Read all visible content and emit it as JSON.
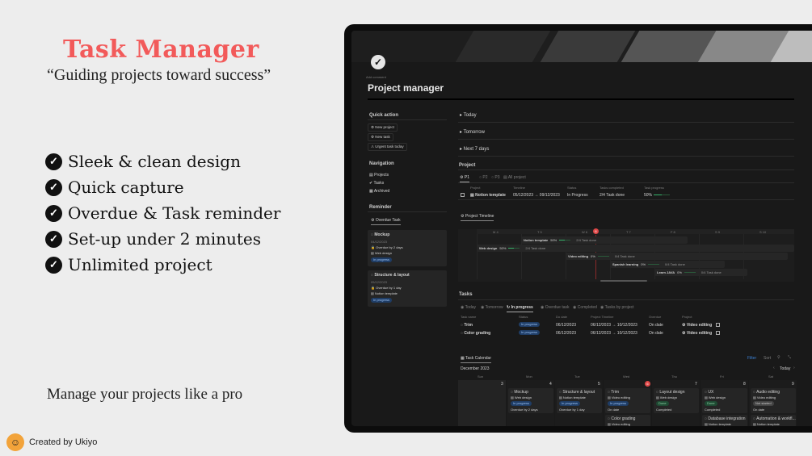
{
  "promo": {
    "title": "Task Manager",
    "tagline": "“Guiding projects toward success”",
    "features": [
      "Sleek & clean design",
      "Quick capture",
      "Overdue & Task reminder",
      "Set-up under 2 minutes",
      "Unlimited project"
    ],
    "bottom_line": "Manage your projects like a pro",
    "creator": "Created by Ukiyo",
    "title_color": "#f25a5a"
  },
  "app": {
    "add_comment": "Add comment",
    "page_title": "Project manager",
    "quick_action": {
      "heading": "Quick action",
      "buttons": [
        "New project",
        "New task",
        "Urgent task today"
      ]
    },
    "navigation": {
      "heading": "Navigation",
      "items": [
        "Projects",
        "Tasks",
        "Archived"
      ]
    },
    "reminder": {
      "heading": "Reminder",
      "tab": "Overdue Task",
      "cards": [
        {
          "name": "Mockup",
          "date": "04/12/2023",
          "overdue": "Overdue by 2 days",
          "project": "Web design",
          "status": "In progress"
        },
        {
          "name": "Structure & layout",
          "date": "05/12/2023",
          "overdue": "Overdue by 1 day",
          "project": "Notion template",
          "status": "In progress"
        }
      ]
    },
    "toggles": [
      "Today",
      "Tomorrow",
      "Next 7 days"
    ],
    "project": {
      "heading": "Project",
      "tabs": [
        "P1",
        "P2",
        "P3",
        "All project"
      ],
      "columns": [
        "Project",
        "Timeline",
        "Status",
        "Tasks completed",
        "Task progress"
      ],
      "rows": [
        {
          "name": "Notion template",
          "timeline": "05/12/2023 → 09/12/2023",
          "status": "In Progress",
          "tasks": "2/4 Task done",
          "progress_label": "50%",
          "progress": 0.5
        }
      ]
    },
    "timeline": {
      "tab": "Project Timeline",
      "days": [
        "M 4",
        "T 5",
        "W 6",
        "T 7",
        "F 8",
        "S 9",
        "S 10"
      ],
      "today_marker": "6",
      "bars": [
        {
          "name": "Notion template",
          "pct": "50%",
          "progress": 0.5,
          "done": "2/4 Task done"
        },
        {
          "name": "Web design",
          "pct": "50%",
          "progress": 0.5,
          "done": "2/4 Task done"
        },
        {
          "name": "Video editing",
          "pct": "0%",
          "progress": 0,
          "done": "0/4 Task done"
        },
        {
          "name": "Spanish learning",
          "pct": "0%",
          "progress": 0,
          "done": "0/4 Task done"
        },
        {
          "name": "Learn JAVA",
          "pct": "0%",
          "progress": 0,
          "done": "0/4 Task done"
        }
      ]
    },
    "tasks": {
      "heading": "Tasks",
      "tabs": [
        "Today",
        "Tomorrow",
        "In progress",
        "Overdue task",
        "Completed",
        "Tasks by project"
      ],
      "active_tab": "In progress",
      "columns": [
        "Task name",
        "Status",
        "Do date",
        "Project Timeline",
        "Overdue",
        "Project"
      ],
      "rows": [
        {
          "name": "Trim",
          "status": "In progress",
          "do_date": "06/12/2023",
          "timeline": "06/12/2023 → 10/12/2023",
          "overdue": "On date",
          "project": "Video editing"
        },
        {
          "name": "Color grading",
          "status": "In progress",
          "do_date": "06/12/2023",
          "timeline": "06/12/2023 → 10/12/2023",
          "overdue": "On date",
          "project": "Video editing"
        }
      ]
    },
    "calendar": {
      "tab": "Task Calendar",
      "month": "December 2023",
      "filter": "Filter",
      "sort": "Sort",
      "today_btn": "Today",
      "weekdays": [
        "Sun",
        "Mon",
        "Tue",
        "Wed",
        "Thu",
        "Fri",
        "Sat"
      ],
      "dates": [
        "3",
        "4",
        "5",
        "6",
        "7",
        "8",
        "9"
      ],
      "today_date": "6",
      "cards": [
        {
          "col": 1,
          "name": "Mockup",
          "project": "Web design",
          "status": "In progress",
          "status_kind": "blue",
          "note": "Overdue by 2 days"
        },
        {
          "col": 2,
          "name": "Structure & layout",
          "project": "Notion template",
          "status": "In progress",
          "status_kind": "blue",
          "note": "Overdue by 1 day"
        },
        {
          "col": 3,
          "name": "Trim",
          "project": "Video editing",
          "status": "In progress",
          "status_kind": "blue",
          "note": "On date"
        },
        {
          "col": 3,
          "name": "Color grading",
          "project": "Video editing"
        },
        {
          "col": 4,
          "name": "Layout design",
          "project": "Web design",
          "status": "Done",
          "status_kind": "green",
          "note": "Completed"
        },
        {
          "col": 5,
          "name": "UX",
          "project": "Web design",
          "status": "Done",
          "status_kind": "green",
          "note": "Completed"
        },
        {
          "col": 5,
          "name": "Database integration",
          "project": "Notion template"
        },
        {
          "col": 6,
          "name": "Audio editing",
          "project": "Video editing",
          "status": "Not started",
          "status_kind": "grey",
          "note": "On date"
        },
        {
          "col": 6,
          "name": "Automation & workfl...",
          "project": "Notion template"
        }
      ]
    }
  }
}
